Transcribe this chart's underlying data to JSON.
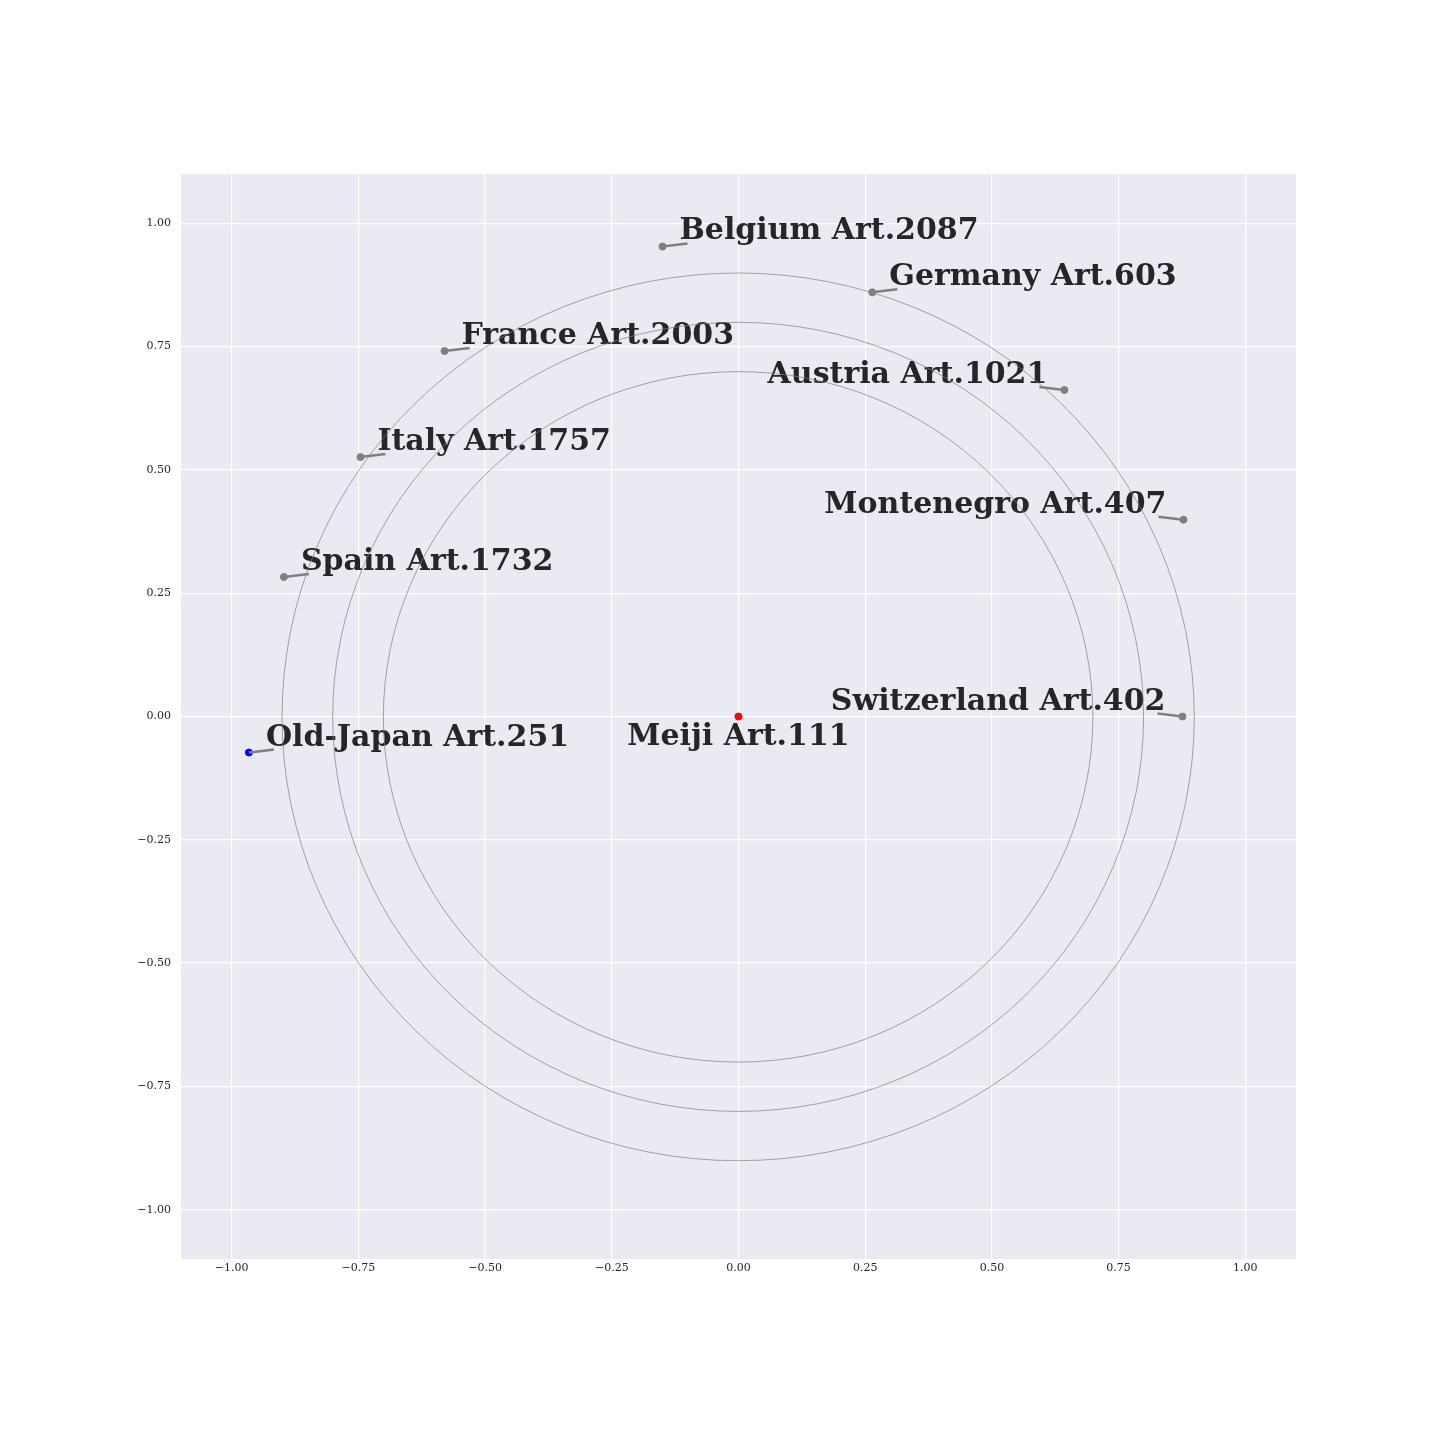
{
  "chart_data": {
    "type": "scatter",
    "marker": "circle",
    "grid": true,
    "legend": false,
    "xlim": [
      -1.1,
      1.1
    ],
    "ylim": [
      -1.1,
      1.1
    ],
    "xticks": [
      {
        "value": -1,
        "label": "−1.00"
      },
      {
        "value": -0.75,
        "label": "−0.75"
      },
      {
        "value": -0.5,
        "label": "−0.50"
      },
      {
        "value": -0.25,
        "label": "−0.25"
      },
      {
        "value": 0,
        "label": "0.00"
      },
      {
        "value": 0.25,
        "label": "0.25"
      },
      {
        "value": 0.5,
        "label": "0.50"
      },
      {
        "value": 0.75,
        "label": "0.75"
      },
      {
        "value": 1,
        "label": "1.00"
      }
    ],
    "yticks": [
      {
        "value": -1,
        "label": "−1.00"
      },
      {
        "value": -0.75,
        "label": "−0.75"
      },
      {
        "value": -0.5,
        "label": "−0.50"
      },
      {
        "value": -0.25,
        "label": "−0.25"
      },
      {
        "value": 0,
        "label": "0.00"
      },
      {
        "value": 0.25,
        "label": "0.25"
      },
      {
        "value": 0.5,
        "label": "0.50"
      },
      {
        "value": 0.75,
        "label": "0.75"
      },
      {
        "value": 1,
        "label": "1.00"
      }
    ],
    "series": [
      {
        "x": [
          -0.15,
          0.264,
          -0.58,
          0.643,
          -0.746,
          0.878,
          -0.897,
          0.876,
          -0.966,
          0
        ],
        "values": [
          0.953,
          0.86,
          0.741,
          0.662,
          0.526,
          0.399,
          0.283,
          0,
          -0.073,
          0
        ],
        "colors": [
          "#808080",
          "#808080",
          "#808080",
          "#808080",
          "#808080",
          "#808080",
          "#808080",
          "#808080",
          "#0000ff",
          "#ff0000"
        ]
      }
    ],
    "annotations": [
      {
        "text": "Belgium Art.2087",
        "x": -0.15,
        "y": 0.953
      },
      {
        "text": "Germany Art.603",
        "x": 0.264,
        "y": 0.86
      },
      {
        "text": "France Art.2003",
        "x": -0.58,
        "y": 0.741
      },
      {
        "text": "Austria Art.1021",
        "x": 0.643,
        "y": 0.662
      },
      {
        "text": "Italy Art.1757",
        "x": -0.746,
        "y": 0.526
      },
      {
        "text": "Montenegro Art.407",
        "x": 0.878,
        "y": 0.399
      },
      {
        "text": "Spain Art.1732",
        "x": -0.897,
        "y": 0.283
      },
      {
        "text": "Switzerland Art.402",
        "x": 0.876,
        "y": 0
      },
      {
        "text": "Old-Japan Art.251",
        "x": -0.966,
        "y": -0.073
      },
      {
        "text": "Meiji Art.111",
        "x": 0,
        "y": 0
      }
    ]
  }
}
